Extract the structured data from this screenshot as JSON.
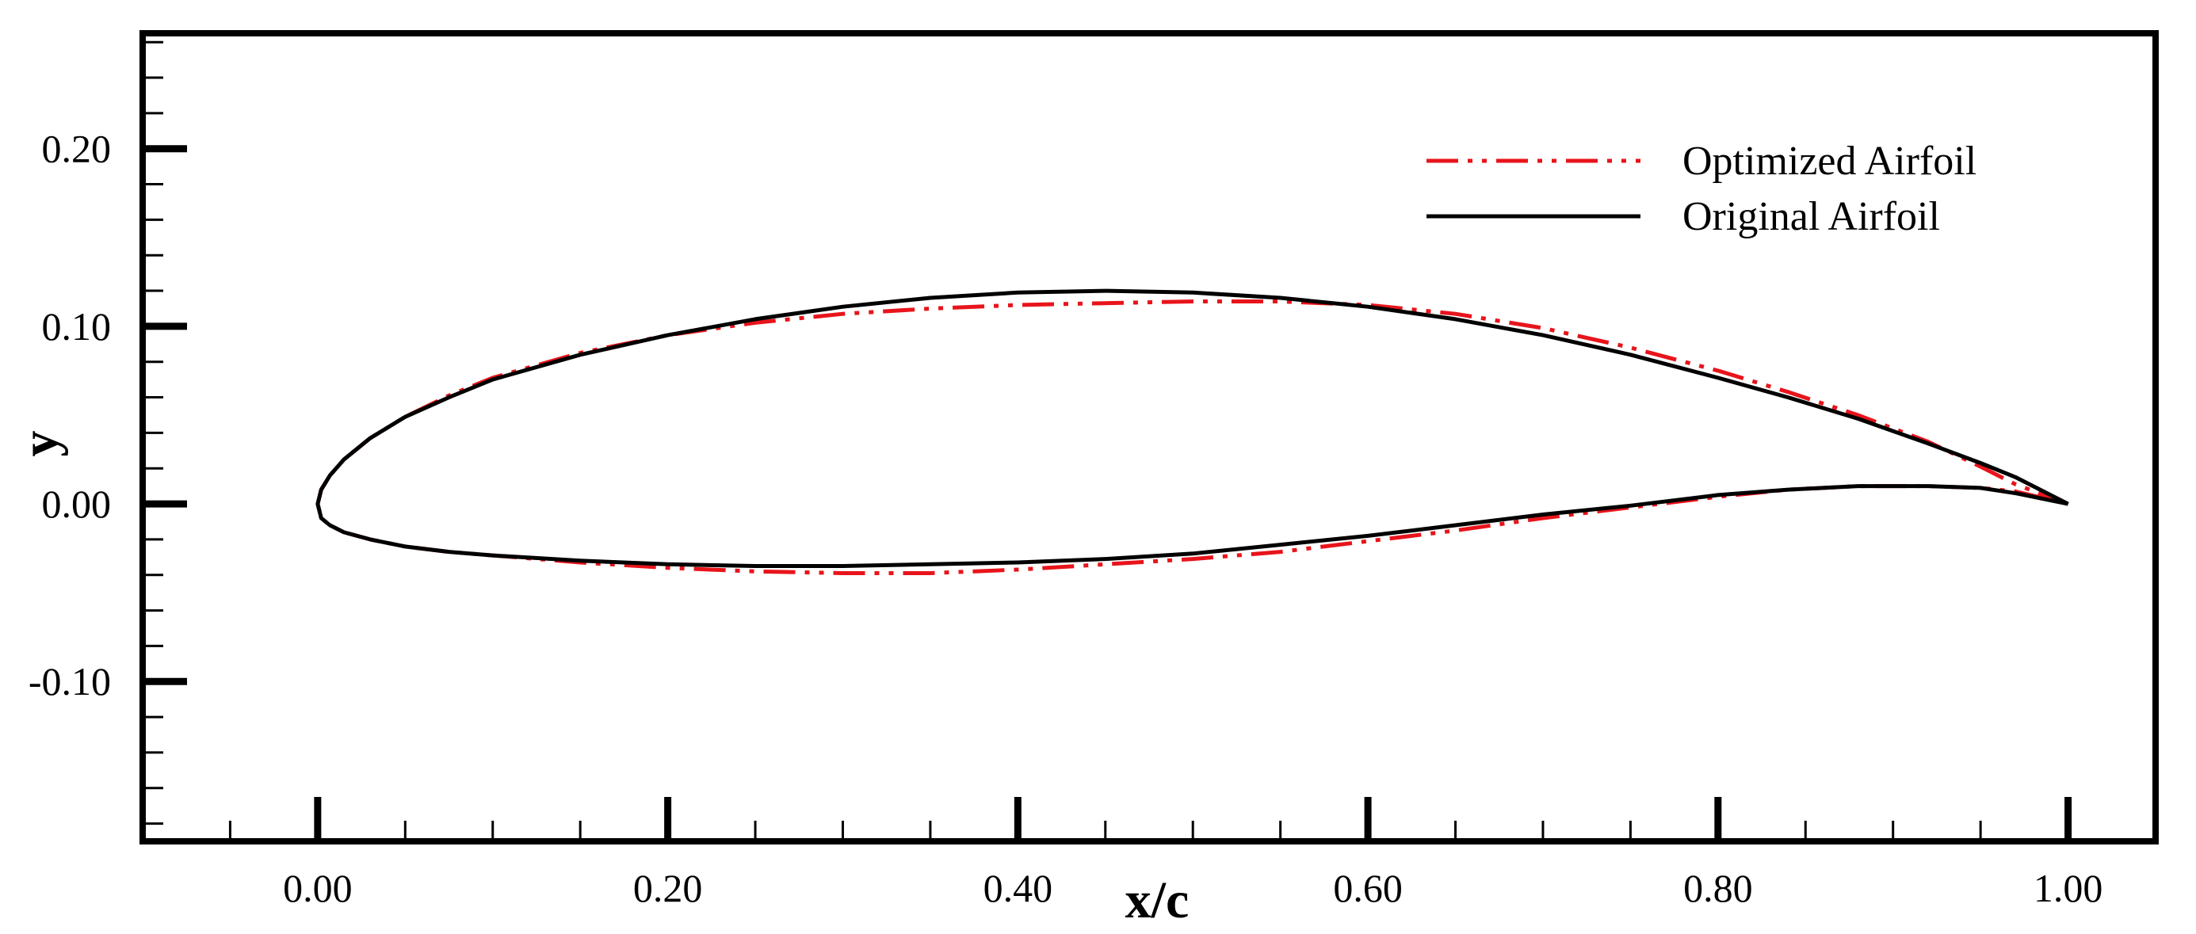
{
  "chart_data": {
    "type": "line",
    "title": "",
    "xlabel": "x/c",
    "ylabel": "y",
    "xlim": [
      -0.1,
      1.05
    ],
    "ylim": [
      -0.19,
      0.265
    ],
    "xticks": [
      0.0,
      0.2,
      0.4,
      0.6,
      0.8,
      1.0
    ],
    "yticks": [
      -0.1,
      0.0,
      0.1,
      0.2
    ],
    "xtick_labels": [
      "0.00",
      "0.20",
      "0.40",
      "0.60",
      "0.80",
      "1.00"
    ],
    "ytick_labels": [
      "-0.10",
      "0.00",
      "0.10",
      "0.20"
    ],
    "x_minor_step": 0.05,
    "y_minor_step": 0.02,
    "grid": false,
    "legend_position": "top-right",
    "series": [
      {
        "name": "Optimized Airfoil",
        "color": "#e8141b",
        "line_style": "dash-dot-dot",
        "x": [
          1.0,
          0.97,
          0.95,
          0.92,
          0.88,
          0.84,
          0.8,
          0.75,
          0.7,
          0.65,
          0.6,
          0.55,
          0.5,
          0.45,
          0.4,
          0.35,
          0.3,
          0.25,
          0.2,
          0.15,
          0.1,
          0.075,
          0.05,
          0.03,
          0.015,
          0.007,
          0.002,
          0.0,
          0.002,
          0.007,
          0.015,
          0.03,
          0.05,
          0.075,
          0.1,
          0.15,
          0.2,
          0.25,
          0.3,
          0.35,
          0.4,
          0.45,
          0.5,
          0.55,
          0.6,
          0.65,
          0.7,
          0.75,
          0.8,
          0.84,
          0.88,
          0.92,
          0.95,
          0.97,
          1.0
        ],
        "y": [
          0.0,
          0.011,
          0.021,
          0.035,
          0.05,
          0.063,
          0.075,
          0.088,
          0.099,
          0.107,
          0.112,
          0.114,
          0.114,
          0.113,
          0.112,
          0.11,
          0.107,
          0.102,
          0.095,
          0.085,
          0.071,
          0.061,
          0.049,
          0.037,
          0.025,
          0.016,
          0.008,
          0.0,
          -0.008,
          -0.012,
          -0.016,
          -0.02,
          -0.024,
          -0.027,
          -0.029,
          -0.033,
          -0.036,
          -0.038,
          -0.039,
          -0.039,
          -0.037,
          -0.034,
          -0.031,
          -0.027,
          -0.021,
          -0.015,
          -0.008,
          -0.002,
          0.004,
          0.008,
          0.01,
          0.01,
          0.009,
          0.007,
          0.0
        ]
      },
      {
        "name": "Original  Airfoil",
        "color": "#000000",
        "line_style": "solid",
        "x": [
          1.0,
          0.97,
          0.95,
          0.92,
          0.88,
          0.84,
          0.8,
          0.75,
          0.7,
          0.65,
          0.6,
          0.55,
          0.5,
          0.45,
          0.4,
          0.35,
          0.3,
          0.25,
          0.2,
          0.15,
          0.1,
          0.075,
          0.05,
          0.03,
          0.015,
          0.007,
          0.002,
          0.0,
          0.002,
          0.007,
          0.015,
          0.03,
          0.05,
          0.075,
          0.1,
          0.15,
          0.2,
          0.25,
          0.3,
          0.35,
          0.4,
          0.45,
          0.5,
          0.55,
          0.6,
          0.65,
          0.7,
          0.75,
          0.8,
          0.84,
          0.88,
          0.92,
          0.95,
          0.97,
          1.0
        ],
        "y": [
          0.0,
          0.015,
          0.023,
          0.034,
          0.048,
          0.06,
          0.071,
          0.084,
          0.095,
          0.104,
          0.111,
          0.116,
          0.119,
          0.12,
          0.119,
          0.116,
          0.111,
          0.104,
          0.095,
          0.084,
          0.07,
          0.06,
          0.049,
          0.037,
          0.025,
          0.016,
          0.008,
          0.0,
          -0.008,
          -0.012,
          -0.016,
          -0.02,
          -0.024,
          -0.027,
          -0.029,
          -0.032,
          -0.034,
          -0.035,
          -0.035,
          -0.034,
          -0.033,
          -0.031,
          -0.028,
          -0.023,
          -0.018,
          -0.012,
          -0.006,
          -0.001,
          0.005,
          0.008,
          0.01,
          0.01,
          0.009,
          0.006,
          0.0
        ]
      }
    ]
  }
}
